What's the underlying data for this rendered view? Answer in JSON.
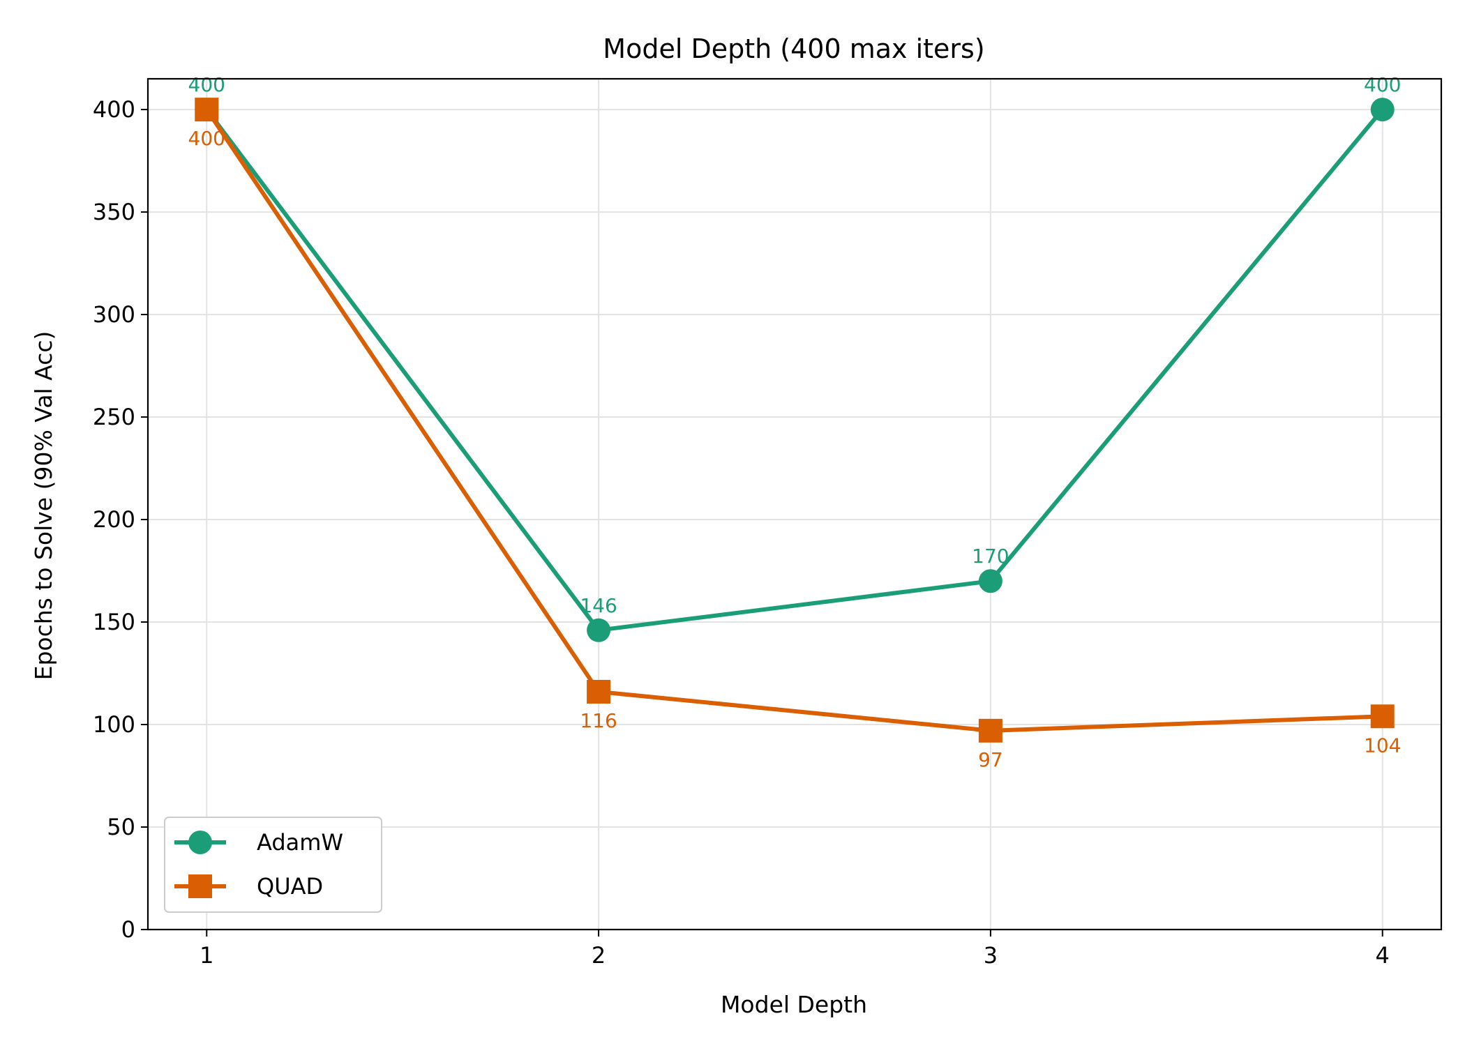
{
  "chart_data": {
    "type": "line",
    "title": "Model Depth (400 max iters)",
    "xlabel": "Model Depth",
    "ylabel": "Epochs to Solve (90% Val Acc)",
    "x": [
      1,
      2,
      3,
      4
    ],
    "x_ticks": [
      "1",
      "2",
      "3",
      "4"
    ],
    "xlim": [
      0.85,
      4.15
    ],
    "ylim": [
      0,
      415
    ],
    "y_ticks": [
      "0",
      "50",
      "100",
      "150",
      "200",
      "250",
      "300",
      "350",
      "400"
    ],
    "grid": true,
    "legend_position": "lower-left",
    "series": [
      {
        "name": "AdamW",
        "color": "#1b9e77",
        "marker": "circle",
        "values": [
          400,
          146,
          170,
          400
        ],
        "labels": [
          "400",
          "146",
          "170",
          "400"
        ],
        "label_position": "above"
      },
      {
        "name": "QUAD",
        "color": "#d95f02",
        "marker": "square",
        "values": [
          400,
          116,
          97,
          104
        ],
        "labels": [
          "400",
          "116",
          "97",
          "104"
        ],
        "label_position": "below"
      }
    ]
  }
}
